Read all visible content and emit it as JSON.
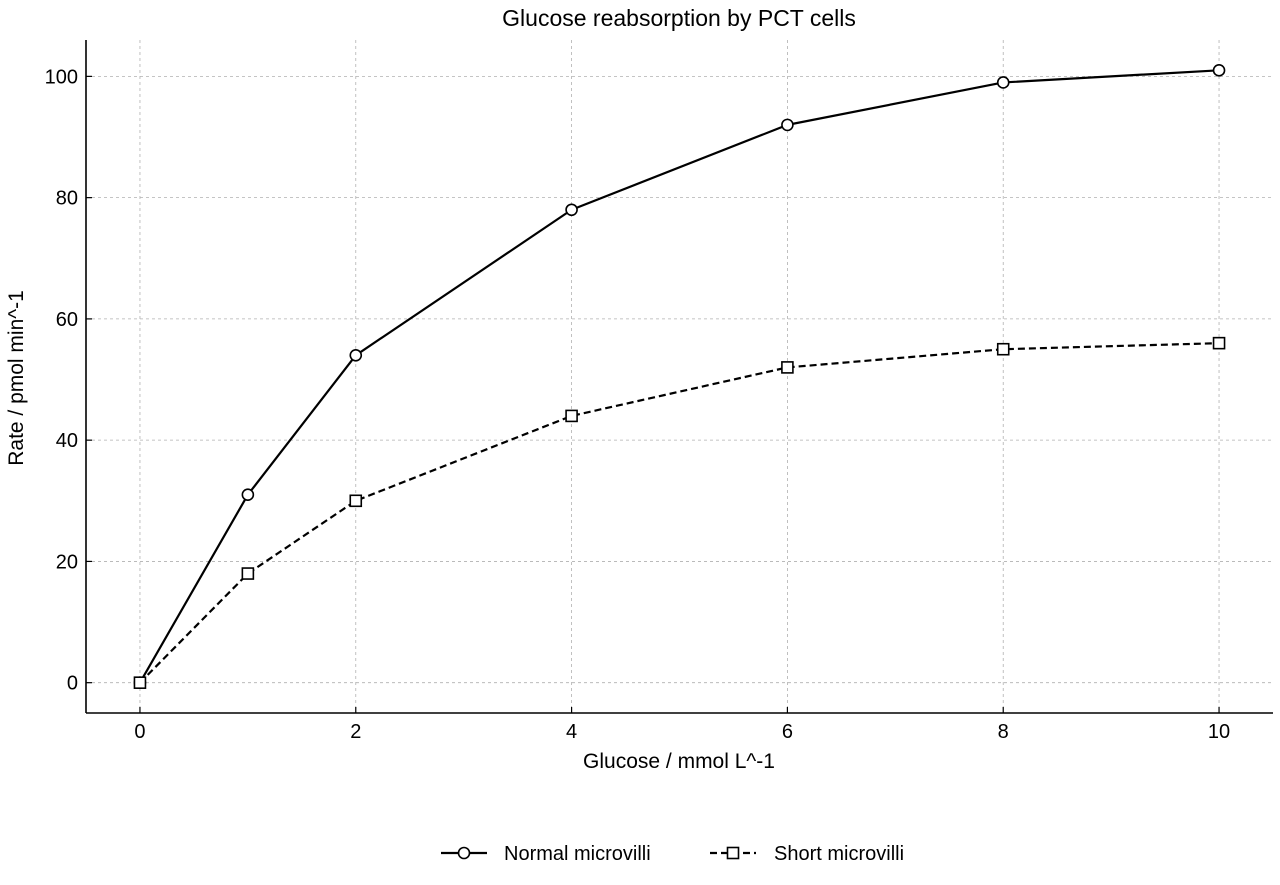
{
  "chart_data": {
    "type": "line",
    "title": "Glucose reabsorption by PCT cells",
    "xlabel": "Glucose / mmol L^-1",
    "ylabel": "Rate / pmol min^-1",
    "x": [
      0,
      1,
      2,
      4,
      6,
      8,
      10
    ],
    "xlim": [
      -0.5,
      10.5
    ],
    "ylim": [
      -5,
      106
    ],
    "xticks": [
      0,
      2,
      4,
      6,
      8,
      10
    ],
    "yticks": [
      0,
      20,
      40,
      60,
      80,
      100
    ],
    "grid": true,
    "legend_position": "bottom-center",
    "series": [
      {
        "name": "Normal microvilli",
        "values": [
          0,
          31,
          54,
          78,
          92,
          99,
          101
        ],
        "marker": "circle",
        "line_style": "solid",
        "color": "#000000"
      },
      {
        "name": "Short microvilli",
        "values": [
          0,
          18,
          30,
          44,
          52,
          55,
          56
        ],
        "marker": "square",
        "line_style": "dashed",
        "color": "#000000"
      }
    ]
  }
}
